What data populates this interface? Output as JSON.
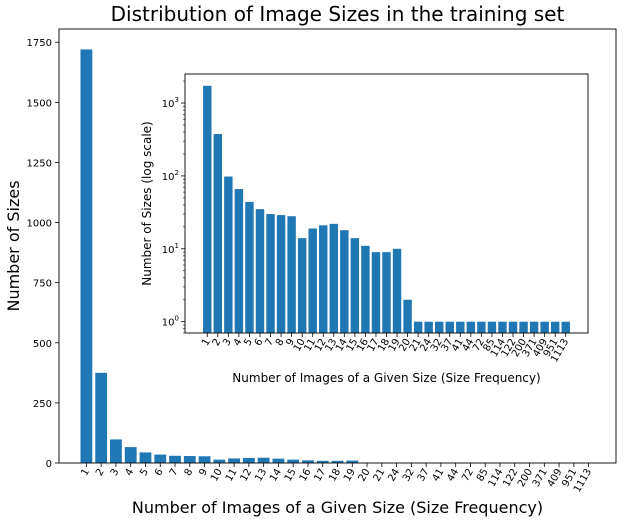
{
  "chart_data": [
    {
      "type": "bar",
      "title": "Distribution of Image Sizes in the training set",
      "xlabel": "Number of Images of a Given Size (Size Frequency)",
      "ylabel": "Number of Sizes",
      "categories": [
        "1",
        "2",
        "3",
        "4",
        "5",
        "6",
        "7",
        "8",
        "9",
        "10",
        "11",
        "12",
        "13",
        "14",
        "15",
        "16",
        "17",
        "18",
        "19",
        "20",
        "21",
        "24",
        "32",
        "37",
        "41",
        "44",
        "72",
        "85",
        "114",
        "122",
        "200",
        "371",
        "409",
        "951",
        "1113"
      ],
      "values": [
        1720,
        375,
        98,
        66,
        44,
        35,
        30,
        29,
        28,
        14,
        19,
        21,
        22,
        18,
        14,
        11,
        9,
        9,
        10,
        2,
        1,
        1,
        1,
        1,
        1,
        1,
        1,
        1,
        1,
        1,
        1,
        1,
        1,
        1,
        1
      ],
      "yticks": [
        0,
        250,
        500,
        750,
        1000,
        1250,
        1500,
        1750
      ],
      "ylim": [
        0,
        1805
      ],
      "color": "#1f77b4"
    },
    {
      "type": "bar",
      "scale": "log",
      "title": "",
      "xlabel": "Number of Images of a Given Size (Size Frequency)",
      "ylabel": "Number of Sizes (log scale)",
      "categories": [
        "1",
        "2",
        "3",
        "4",
        "5",
        "6",
        "7",
        "8",
        "9",
        "10",
        "11",
        "12",
        "13",
        "14",
        "15",
        "16",
        "17",
        "18",
        "19",
        "20",
        "21",
        "24",
        "32",
        "37",
        "41",
        "44",
        "72",
        "85",
        "114",
        "122",
        "200",
        "371",
        "409",
        "951",
        "1113"
      ],
      "values": [
        1720,
        375,
        98,
        66,
        44,
        35,
        30,
        29,
        28,
        14,
        19,
        21,
        22,
        18,
        14,
        11,
        9,
        9,
        10,
        2,
        1,
        1,
        1,
        1,
        1,
        1,
        1,
        1,
        1,
        1,
        1,
        1,
        1,
        1,
        1
      ],
      "yticks": [
        {
          "value": 1,
          "base": "10",
          "exp": "0"
        },
        {
          "value": 10,
          "base": "10",
          "exp": "1"
        },
        {
          "value": 100,
          "base": "10",
          "exp": "2"
        },
        {
          "value": 1000,
          "base": "10",
          "exp": "3"
        }
      ],
      "ylim": [
        0.7,
        2500
      ],
      "color": "#1f77b4"
    }
  ]
}
